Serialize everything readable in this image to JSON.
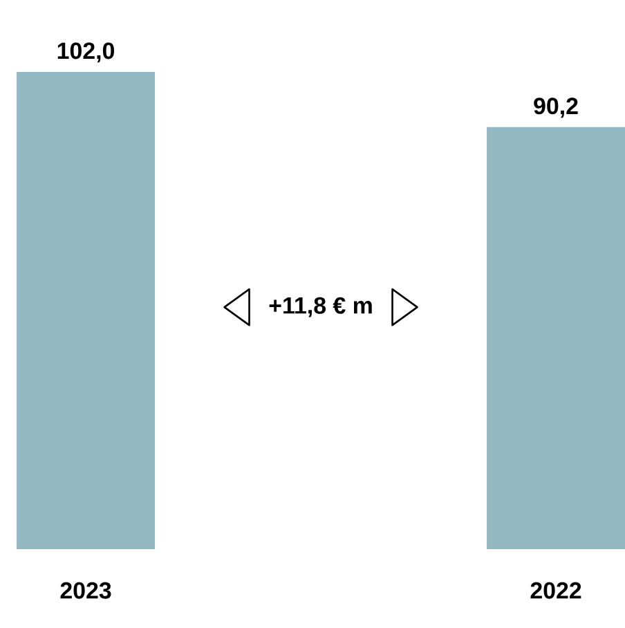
{
  "chart_data": {
    "type": "bar",
    "categories": [
      "2023",
      "2022"
    ],
    "values": [
      102.0,
      90.2
    ],
    "color": "#94b8c2",
    "value_labels": [
      "102,0",
      "90,2"
    ],
    "annotations": [
      "+11,8 € m"
    ]
  }
}
